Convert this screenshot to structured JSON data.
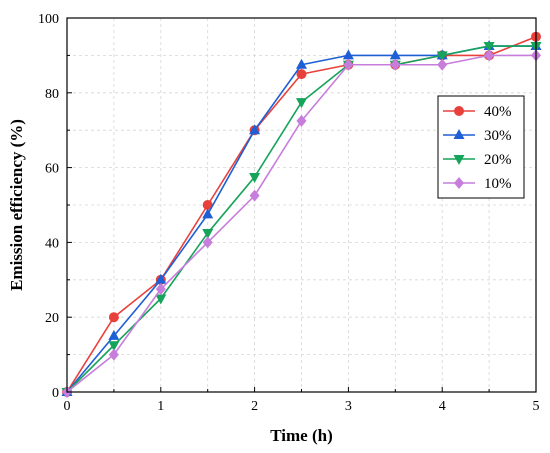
{
  "chart_data": {
    "type": "line",
    "xlabel": "Time (h)",
    "ylabel": "Emission efficiency (%)",
    "xlim": [
      0,
      5
    ],
    "ylim": [
      0,
      100
    ],
    "xticks": [
      0,
      1,
      2,
      3,
      4,
      5
    ],
    "yticks": [
      0,
      20,
      40,
      60,
      80,
      100
    ],
    "grid": true,
    "legend_position": "upper-right",
    "x": [
      0,
      0.5,
      1,
      1.5,
      2,
      2.5,
      3,
      3.5,
      4,
      4.5,
      5
    ],
    "series": [
      {
        "name": "40%",
        "color": "#e8413c",
        "marker": "circle",
        "values": [
          0,
          20,
          30,
          50,
          70,
          85,
          87.5,
          87.5,
          90,
          90,
          95
        ]
      },
      {
        "name": "30%",
        "color": "#1f5fd6",
        "marker": "triangle-up",
        "values": [
          0,
          15,
          30,
          47.5,
          70,
          87.5,
          90,
          90,
          90,
          92.5,
          92.5
        ]
      },
      {
        "name": "20%",
        "color": "#16a35a",
        "marker": "triangle-down",
        "values": [
          0,
          12.5,
          25,
          42.5,
          57.5,
          77.5,
          87.5,
          87.5,
          90,
          92.5,
          92.5
        ]
      },
      {
        "name": "10%",
        "color": "#c77ddb",
        "marker": "diamond",
        "values": [
          0,
          10,
          27.5,
          40,
          52.5,
          72.5,
          87.5,
          87.5,
          87.5,
          90,
          90
        ]
      }
    ]
  }
}
